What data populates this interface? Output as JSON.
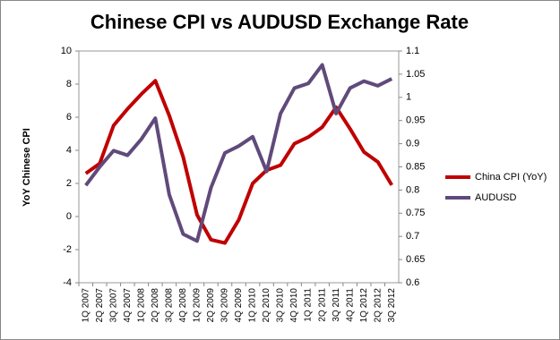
{
  "chart_data": {
    "type": "line",
    "title": "Chinese CPI vs AUDUSD Exchange Rate",
    "ylabel": "YoY Chinese CPI",
    "categories": [
      "1Q 2007",
      "2Q 2007",
      "3Q 2007",
      "4Q 2007",
      "1Q 2008",
      "2Q 2008",
      "3Q 2008",
      "4Q 2008",
      "1Q 2009",
      "2Q 2009",
      "3Q 2009",
      "4Q 2009",
      "1Q 2010",
      "2Q 2010",
      "3Q 2010",
      "4Q 2010",
      "1Q 2011",
      "2Q 2011",
      "3Q 2011",
      "4Q 2011",
      "1Q 2012",
      "2Q 2012",
      "3Q 2012"
    ],
    "series": [
      {
        "name": "China CPI (YoY)",
        "color": "#c00000",
        "axis": "y",
        "values": [
          2.6,
          3.2,
          5.5,
          6.5,
          7.4,
          8.2,
          6.1,
          3.6,
          0.1,
          -1.4,
          -1.6,
          -0.2,
          2.0,
          2.8,
          3.1,
          4.4,
          4.8,
          5.4,
          6.6,
          5.3,
          3.9,
          3.3,
          1.9
        ]
      },
      {
        "name": "AUDUSD",
        "color": "#604a7b",
        "axis": "y2",
        "values": [
          0.81,
          0.85,
          0.885,
          0.875,
          0.91,
          0.955,
          0.79,
          0.705,
          0.69,
          0.805,
          0.88,
          0.895,
          0.915,
          0.84,
          0.965,
          1.02,
          1.03,
          1.07,
          0.965,
          1.02,
          1.035,
          1.025,
          1.04
        ]
      }
    ],
    "ylim": [
      -4,
      10
    ],
    "yticks": [
      -4,
      -2,
      0,
      2,
      4,
      6,
      8,
      10
    ],
    "y2lim": [
      0.6,
      1.1
    ],
    "y2ticks": [
      0.6,
      0.65,
      0.7,
      0.75,
      0.8,
      0.85,
      0.9,
      0.95,
      1,
      1.05,
      1.1
    ],
    "legend": "right"
  }
}
